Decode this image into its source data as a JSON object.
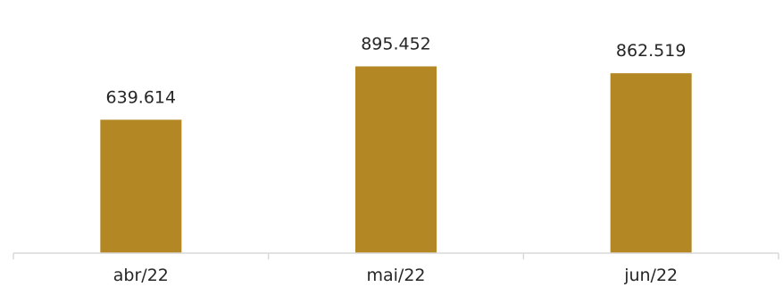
{
  "colors": {
    "bar": "#b38824",
    "axis": "#d9d9d9",
    "text": "#262626"
  },
  "chart_data": {
    "type": "bar",
    "title": "",
    "xlabel": "",
    "ylabel": "",
    "categories": [
      "abr/22",
      "mai/22",
      "jun/22"
    ],
    "values": [
      639614,
      895452,
      862519
    ],
    "data_labels": [
      "639.614",
      "895.452",
      "862.519"
    ],
    "ylim": [
      0,
      1000000
    ],
    "grid": false,
    "legend": "none"
  }
}
